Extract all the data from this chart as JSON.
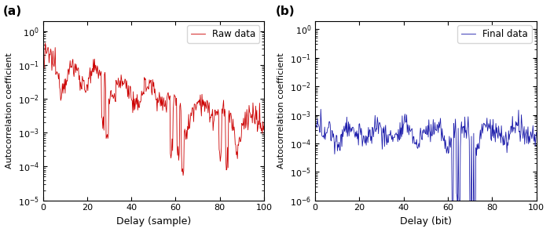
{
  "panel_a": {
    "label": "Raw data",
    "color": "#cc0000",
    "xlabel": "Delay (sample)",
    "ylabel": "Autocorrelation coefficient",
    "title": "(a)",
    "ylim": [
      1e-05,
      2.0
    ],
    "xlim": [
      0,
      100
    ],
    "yticks": [
      1e-05,
      0.0001,
      0.001,
      0.01,
      0.1,
      1.0
    ],
    "xticks": [
      0,
      20,
      40,
      60,
      80,
      100
    ]
  },
  "panel_b": {
    "label": "Final data",
    "color": "#1a1aaa",
    "xlabel": "Delay (bit)",
    "ylabel": "Autocorrelation coefficient",
    "title": "(b)",
    "ylim": [
      1e-06,
      2.0
    ],
    "xlim": [
      0,
      100
    ],
    "yticks": [
      1e-06,
      1e-05,
      0.0001,
      0.001,
      0.01,
      0.1,
      1.0
    ],
    "xticks": [
      0,
      20,
      40,
      60,
      80,
      100
    ]
  },
  "background_color": "#ffffff",
  "figure_size": [
    7.0,
    2.96
  ],
  "dpi": 100
}
